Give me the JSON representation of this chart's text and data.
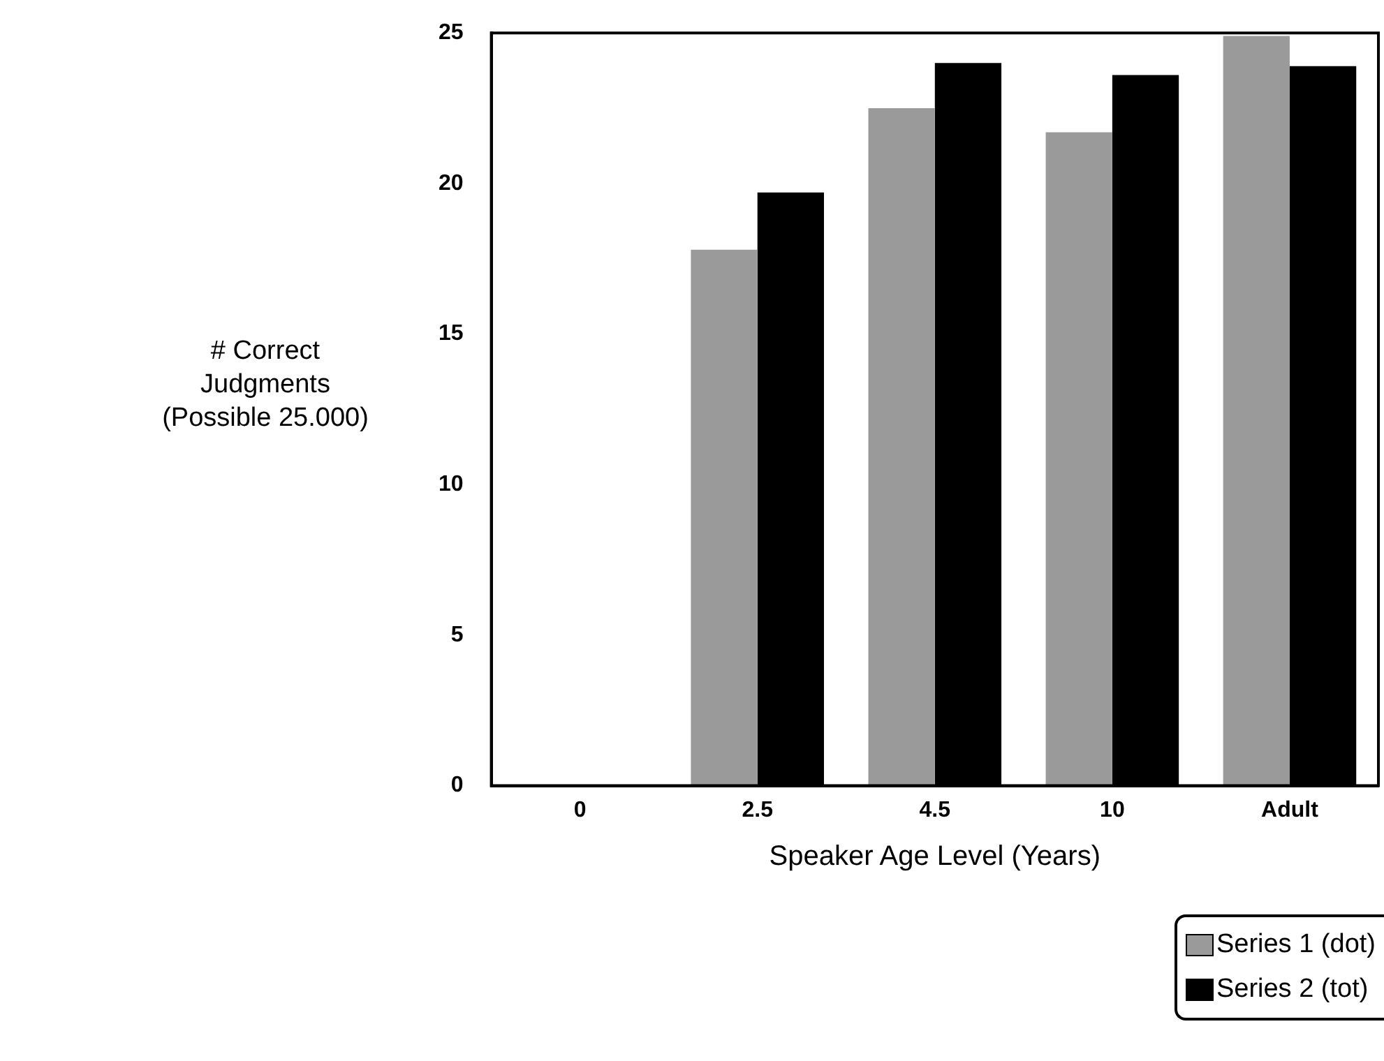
{
  "chart_data": {
    "type": "bar",
    "xlabel": "Speaker Age Level (Years)",
    "ylabel": "# Correct Judgments (Possible 25.000)",
    "categories": [
      "0",
      "2.5",
      "4.5",
      "10",
      "Adult"
    ],
    "series": [
      {
        "name": "Series 1 (dot)",
        "color": "#9a9a9a",
        "values": [
          null,
          17.8,
          22.5,
          21.7,
          24.9
        ]
      },
      {
        "name": "Series 2  (tot)",
        "color": "#000000",
        "values": [
          null,
          19.7,
          24.0,
          23.6,
          23.9
        ]
      }
    ],
    "ylim": [
      0,
      25
    ],
    "yticks": [
      0,
      5,
      10,
      15,
      20,
      25
    ],
    "grid": false,
    "legend": "bottom right"
  }
}
